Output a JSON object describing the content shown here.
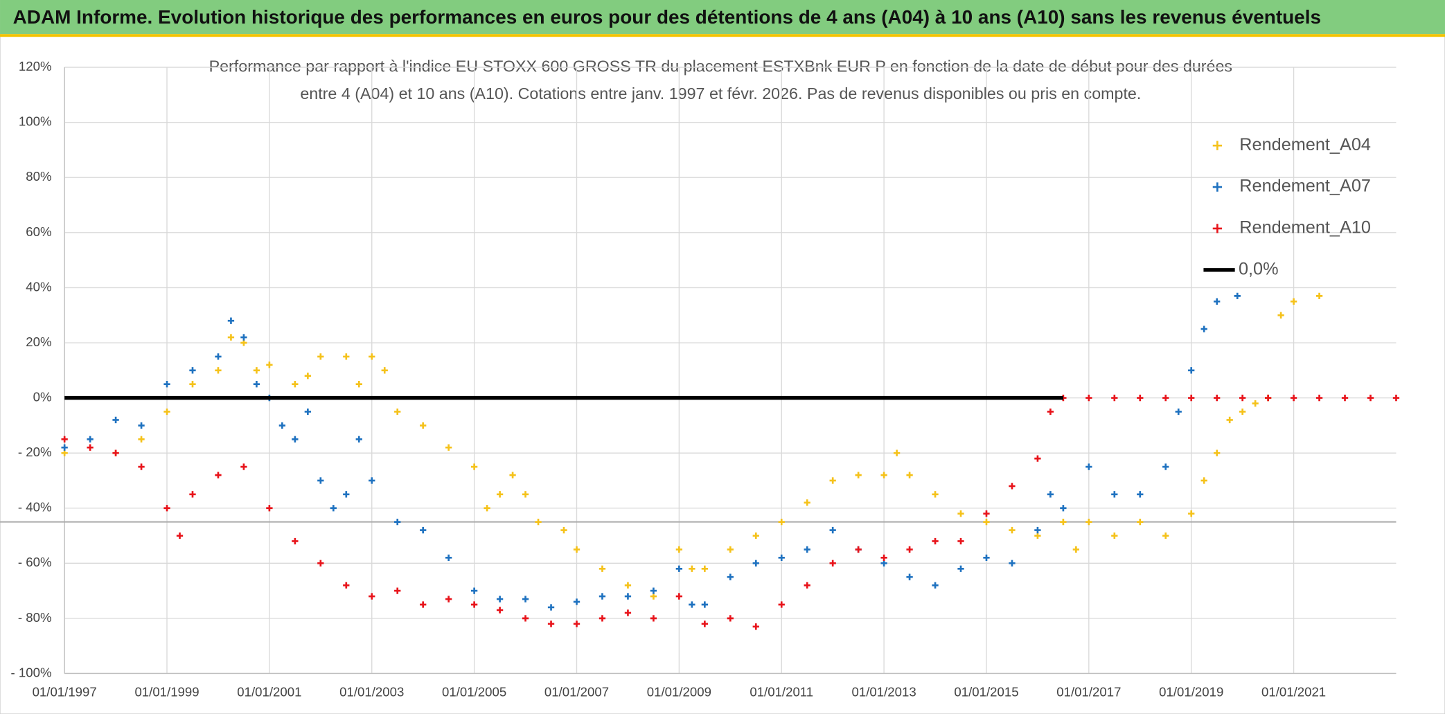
{
  "chart_data": {
    "type": "scatter",
    "title": "ADAM Informe. Evolution historique des performances en euros pour des détentions de 4 ans (A04) à 10 ans (A10) sans les revenus éventuels",
    "subtitle": [
      "Performance par rapport à l'indice EU STOXX 600 GROSS TR  du placement ESTXBnk EUR P en fonction de la date de début pour des durées",
      "entre 4 (A04) et 10 ans (A10). Cotations entre janv. 1997 et févr. 2026. Pas de revenus disponibles ou pris en compte."
    ],
    "xlim": [
      1997,
      2023
    ],
    "ylim": [
      -100,
      120
    ],
    "xticks": [
      {
        "value": 1997,
        "label": "01/01/1997"
      },
      {
        "value": 1999,
        "label": "01/01/1999"
      },
      {
        "value": 2001,
        "label": "01/01/2001"
      },
      {
        "value": 2003,
        "label": "01/01/2003"
      },
      {
        "value": 2005,
        "label": "01/01/2005"
      },
      {
        "value": 2007,
        "label": "01/01/2007"
      },
      {
        "value": 2009,
        "label": "01/01/2009"
      },
      {
        "value": 2011,
        "label": "01/01/2011"
      },
      {
        "value": 2013,
        "label": "01/01/2013"
      },
      {
        "value": 2015,
        "label": "01/01/2015"
      },
      {
        "value": 2017,
        "label": "01/01/2017"
      },
      {
        "value": 2019,
        "label": "01/01/2019"
      },
      {
        "value": 2021,
        "label": "01/01/2021"
      }
    ],
    "yticks": [
      {
        "value": 120,
        "label": "120%"
      },
      {
        "value": 100,
        "label": "100%"
      },
      {
        "value": 80,
        "label": "80%"
      },
      {
        "value": 60,
        "label": "60%"
      },
      {
        "value": 40,
        "label": "40%"
      },
      {
        "value": 20,
        "label": "20%"
      },
      {
        "value": 0,
        "label": "0%"
      },
      {
        "value": -20,
        "label": "- 20%"
      },
      {
        "value": -40,
        "label": "- 40%"
      },
      {
        "value": -60,
        "label": "- 60%"
      },
      {
        "value": -80,
        "label": "- 80%"
      },
      {
        "value": -100,
        "label": "- 100%"
      }
    ],
    "grid": true,
    "legend": "top-right",
    "reference_line": {
      "name": "0,0%",
      "value": 0,
      "color": "#000000"
    },
    "hline": {
      "value": -45,
      "color": "#aaaaaa"
    },
    "series": [
      {
        "name": "Rendement_A04",
        "color": "#f5c21b",
        "x": [
          1997,
          1998,
          1998.5,
          1999,
          1999.5,
          2000,
          2000.25,
          2000.5,
          2000.75,
          2001,
          2001.5,
          2001.75,
          2002,
          2002.5,
          2002.75,
          2003,
          2003.25,
          2003.5,
          2004,
          2004.5,
          2005,
          2005.25,
          2005.5,
          2005.75,
          2006,
          2006.25,
          2006.75,
          2007,
          2007.5,
          2008,
          2008.5,
          2009,
          2009.25,
          2009.5,
          2010,
          2010.5,
          2011,
          2011.5,
          2012,
          2012.5,
          2013,
          2013.25,
          2013.5,
          2014,
          2014.5,
          2015,
          2015.5,
          2016,
          2016.5,
          2016.75,
          2017,
          2017.5,
          2018,
          2018.5,
          2019,
          2019.25,
          2019.5,
          2019.75,
          2020,
          2020.25,
          2020.5,
          2020.75,
          2021,
          2021.5
        ],
        "values": [
          -20,
          -20,
          -15,
          -5,
          5,
          10,
          22,
          20,
          10,
          12,
          5,
          8,
          15,
          15,
          5,
          15,
          10,
          -5,
          -10,
          -18,
          -25,
          -40,
          -35,
          -28,
          -35,
          -45,
          -48,
          -55,
          -62,
          -68,
          -72,
          -55,
          -62,
          -62,
          -55,
          -50,
          -45,
          -38,
          -30,
          -28,
          -28,
          -20,
          -28,
          -35,
          -42,
          -45,
          -48,
          -50,
          -45,
          -55,
          -45,
          -50,
          -45,
          -50,
          -42,
          -30,
          -20,
          -8,
          -5,
          -2,
          0,
          30,
          35,
          37
        ]
      },
      {
        "name": "Rendement_A07",
        "color": "#1f72c0",
        "x": [
          1997,
          1997.5,
          1998,
          1998.5,
          1999,
          1999.5,
          2000,
          2000.25,
          2000.5,
          2000.75,
          2001,
          2001.25,
          2001.5,
          2001.75,
          2002,
          2002.25,
          2002.5,
          2002.75,
          2003,
          2003.5,
          2004,
          2004.5,
          2005,
          2005.5,
          2006,
          2006.5,
          2007,
          2007.5,
          2008,
          2008.5,
          2009,
          2009.25,
          2009.5,
          2010,
          2010.5,
          2011,
          2011.5,
          2012,
          2012.5,
          2013,
          2013.5,
          2014,
          2014.5,
          2015,
          2015.5,
          2016,
          2016.25,
          2016.5,
          2017,
          2017.5,
          2018,
          2018.5,
          2018.75,
          2019,
          2019.25,
          2019.5,
          2019.9
        ],
        "values": [
          -18,
          -15,
          -8,
          -10,
          5,
          10,
          15,
          28,
          22,
          5,
          0,
          -10,
          -15,
          -5,
          -30,
          -40,
          -35,
          -15,
          -30,
          -45,
          -48,
          -58,
          -70,
          -73,
          -73,
          -76,
          -74,
          -72,
          -72,
          -70,
          -62,
          -75,
          -75,
          -65,
          -60,
          -58,
          -55,
          -48,
          -55,
          -60,
          -65,
          -68,
          -62,
          -58,
          -60,
          -48,
          -35,
          -40,
          -25,
          -35,
          -35,
          -25,
          -5,
          10,
          25,
          35,
          37
        ]
      },
      {
        "name": "Rendement_A10",
        "color": "#e8141b",
        "x": [
          1997,
          1997.5,
          1998,
          1998.5,
          1999,
          1999.25,
          1999.5,
          2000,
          2000.5,
          2001,
          2001.5,
          2002,
          2002.5,
          2003,
          2003.5,
          2004,
          2004.5,
          2005,
          2005.5,
          2006,
          2006.5,
          2007,
          2007.5,
          2008,
          2008.5,
          2009,
          2009.5,
          2010,
          2010.5,
          2011,
          2011.5,
          2012,
          2012.5,
          2013,
          2013.5,
          2014,
          2014.5,
          2015,
          2015.5,
          2016,
          2016.25,
          2016.5,
          2017,
          2017.5,
          2018,
          2018.5,
          2019,
          2019.5,
          2020,
          2020.5,
          2021,
          2021.5,
          2022,
          2022.5,
          2023
        ],
        "values": [
          -15,
          -18,
          -20,
          -25,
          -40,
          -50,
          -35,
          -28,
          -25,
          -40,
          -52,
          -60,
          -68,
          -72,
          -70,
          -75,
          -73,
          -75,
          -77,
          -80,
          -82,
          -82,
          -80,
          -78,
          -80,
          -72,
          -82,
          -80,
          -83,
          -75,
          -68,
          -60,
          -55,
          -58,
          -55,
          -52,
          -52,
          -42,
          -32,
          -22,
          -5,
          0,
          0,
          0,
          0,
          0,
          0,
          0,
          0,
          0,
          0,
          0,
          0,
          0,
          0
        ]
      }
    ]
  }
}
